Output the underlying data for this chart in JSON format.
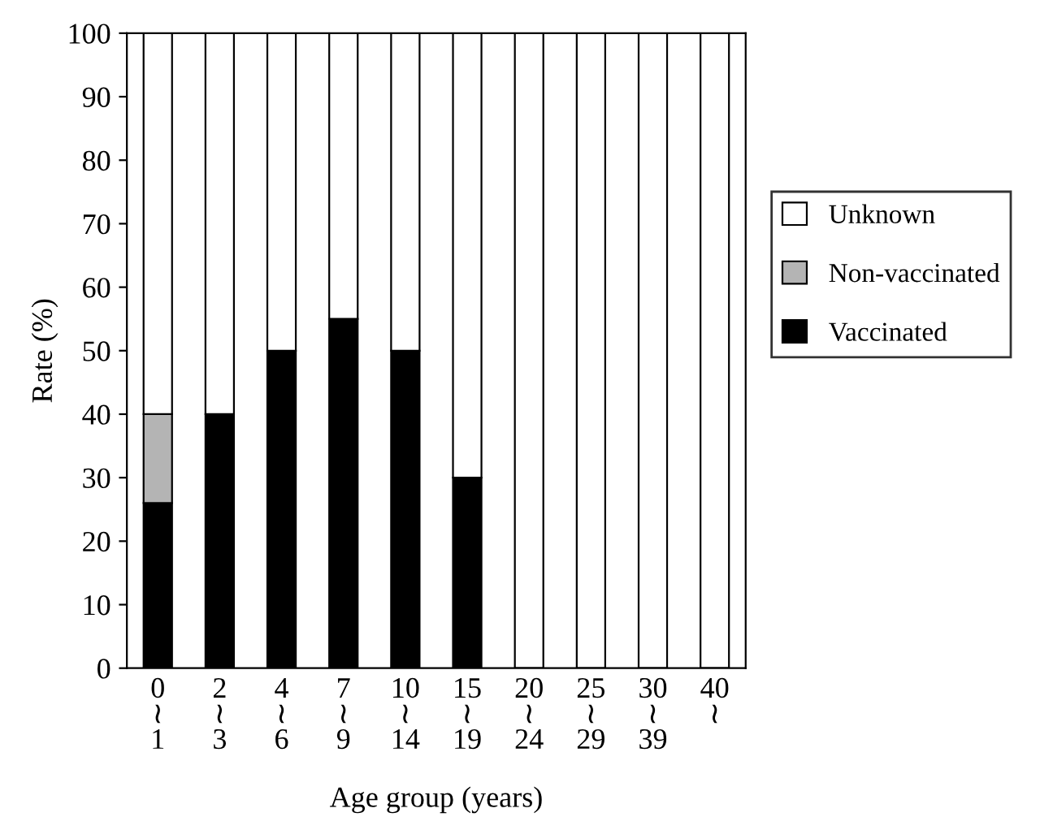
{
  "chart_data": {
    "type": "bar",
    "stacked": true,
    "xlabel": "Age group (years)",
    "ylabel": "Rate (%)",
    "categories": [
      "0\n≀\n1",
      "2\n≀\n3",
      "4\n≀\n6",
      "7\n≀\n9",
      "10\n≀\n14",
      "15\n≀\n19",
      "20\n≀\n24",
      "25\n≀\n29",
      "30\n≀\n39",
      "40\n≀"
    ],
    "series": [
      {
        "name": "Vaccinated",
        "color": "#000000",
        "values": [
          26,
          40,
          50,
          55,
          50,
          30,
          0,
          0,
          0,
          0
        ]
      },
      {
        "name": "Non-vaccinated",
        "color": "#b4b4b4",
        "values": [
          14,
          0,
          0,
          0,
          0,
          0,
          0,
          0,
          0,
          0
        ]
      },
      {
        "name": "Unknown",
        "color": "#ffffff",
        "values": [
          60,
          60,
          50,
          45,
          50,
          70,
          100,
          100,
          100,
          100
        ]
      }
    ],
    "ylim": [
      0,
      100
    ],
    "yticks": [
      0,
      10,
      20,
      30,
      40,
      50,
      60,
      70,
      80,
      90,
      100
    ],
    "grid": false,
    "legend": "right"
  }
}
